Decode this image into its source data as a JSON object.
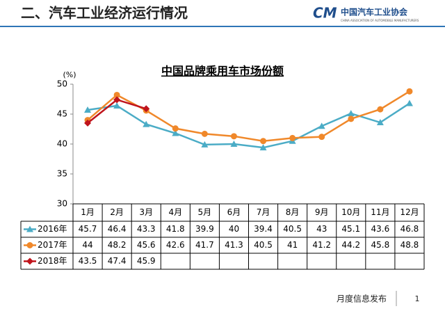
{
  "header": {
    "title": "二、汽车工业经济运行情况",
    "logo_text": "中国汽车工业协会",
    "logo_subtitle": "CHINA ASSOCIATION OF AUTOMOBILE MANUFACTURERS"
  },
  "chart_data": {
    "type": "line",
    "title": "中国品牌乘用车市场份额",
    "y_label": "(%)",
    "categories": [
      "1月",
      "2月",
      "3月",
      "4月",
      "5月",
      "6月",
      "7月",
      "8月",
      "9月",
      "10月",
      "11月",
      "12月"
    ],
    "series": [
      {
        "name": "2016年",
        "color": "#4bacc6",
        "marker": "triangle",
        "values": [
          45.7,
          46.4,
          43.3,
          41.8,
          39.9,
          40.0,
          39.4,
          40.5,
          43.0,
          45.1,
          43.6,
          46.8
        ]
      },
      {
        "name": "2017年",
        "color": "#f0882a",
        "marker": "circle",
        "values": [
          44.0,
          48.2,
          45.6,
          42.6,
          41.7,
          41.3,
          40.5,
          41.0,
          41.2,
          44.2,
          45.8,
          48.8
        ]
      },
      {
        "name": "2018年",
        "color": "#c0141c",
        "marker": "diamond",
        "values": [
          43.5,
          47.4,
          45.9,
          null,
          null,
          null,
          null,
          null,
          null,
          null,
          null,
          null
        ]
      }
    ],
    "ylim": [
      30,
      50
    ],
    "yticks": [
      30,
      35,
      40,
      45,
      50
    ],
    "grid": false
  },
  "footer": {
    "text": "月度信息发布",
    "page": "1"
  }
}
